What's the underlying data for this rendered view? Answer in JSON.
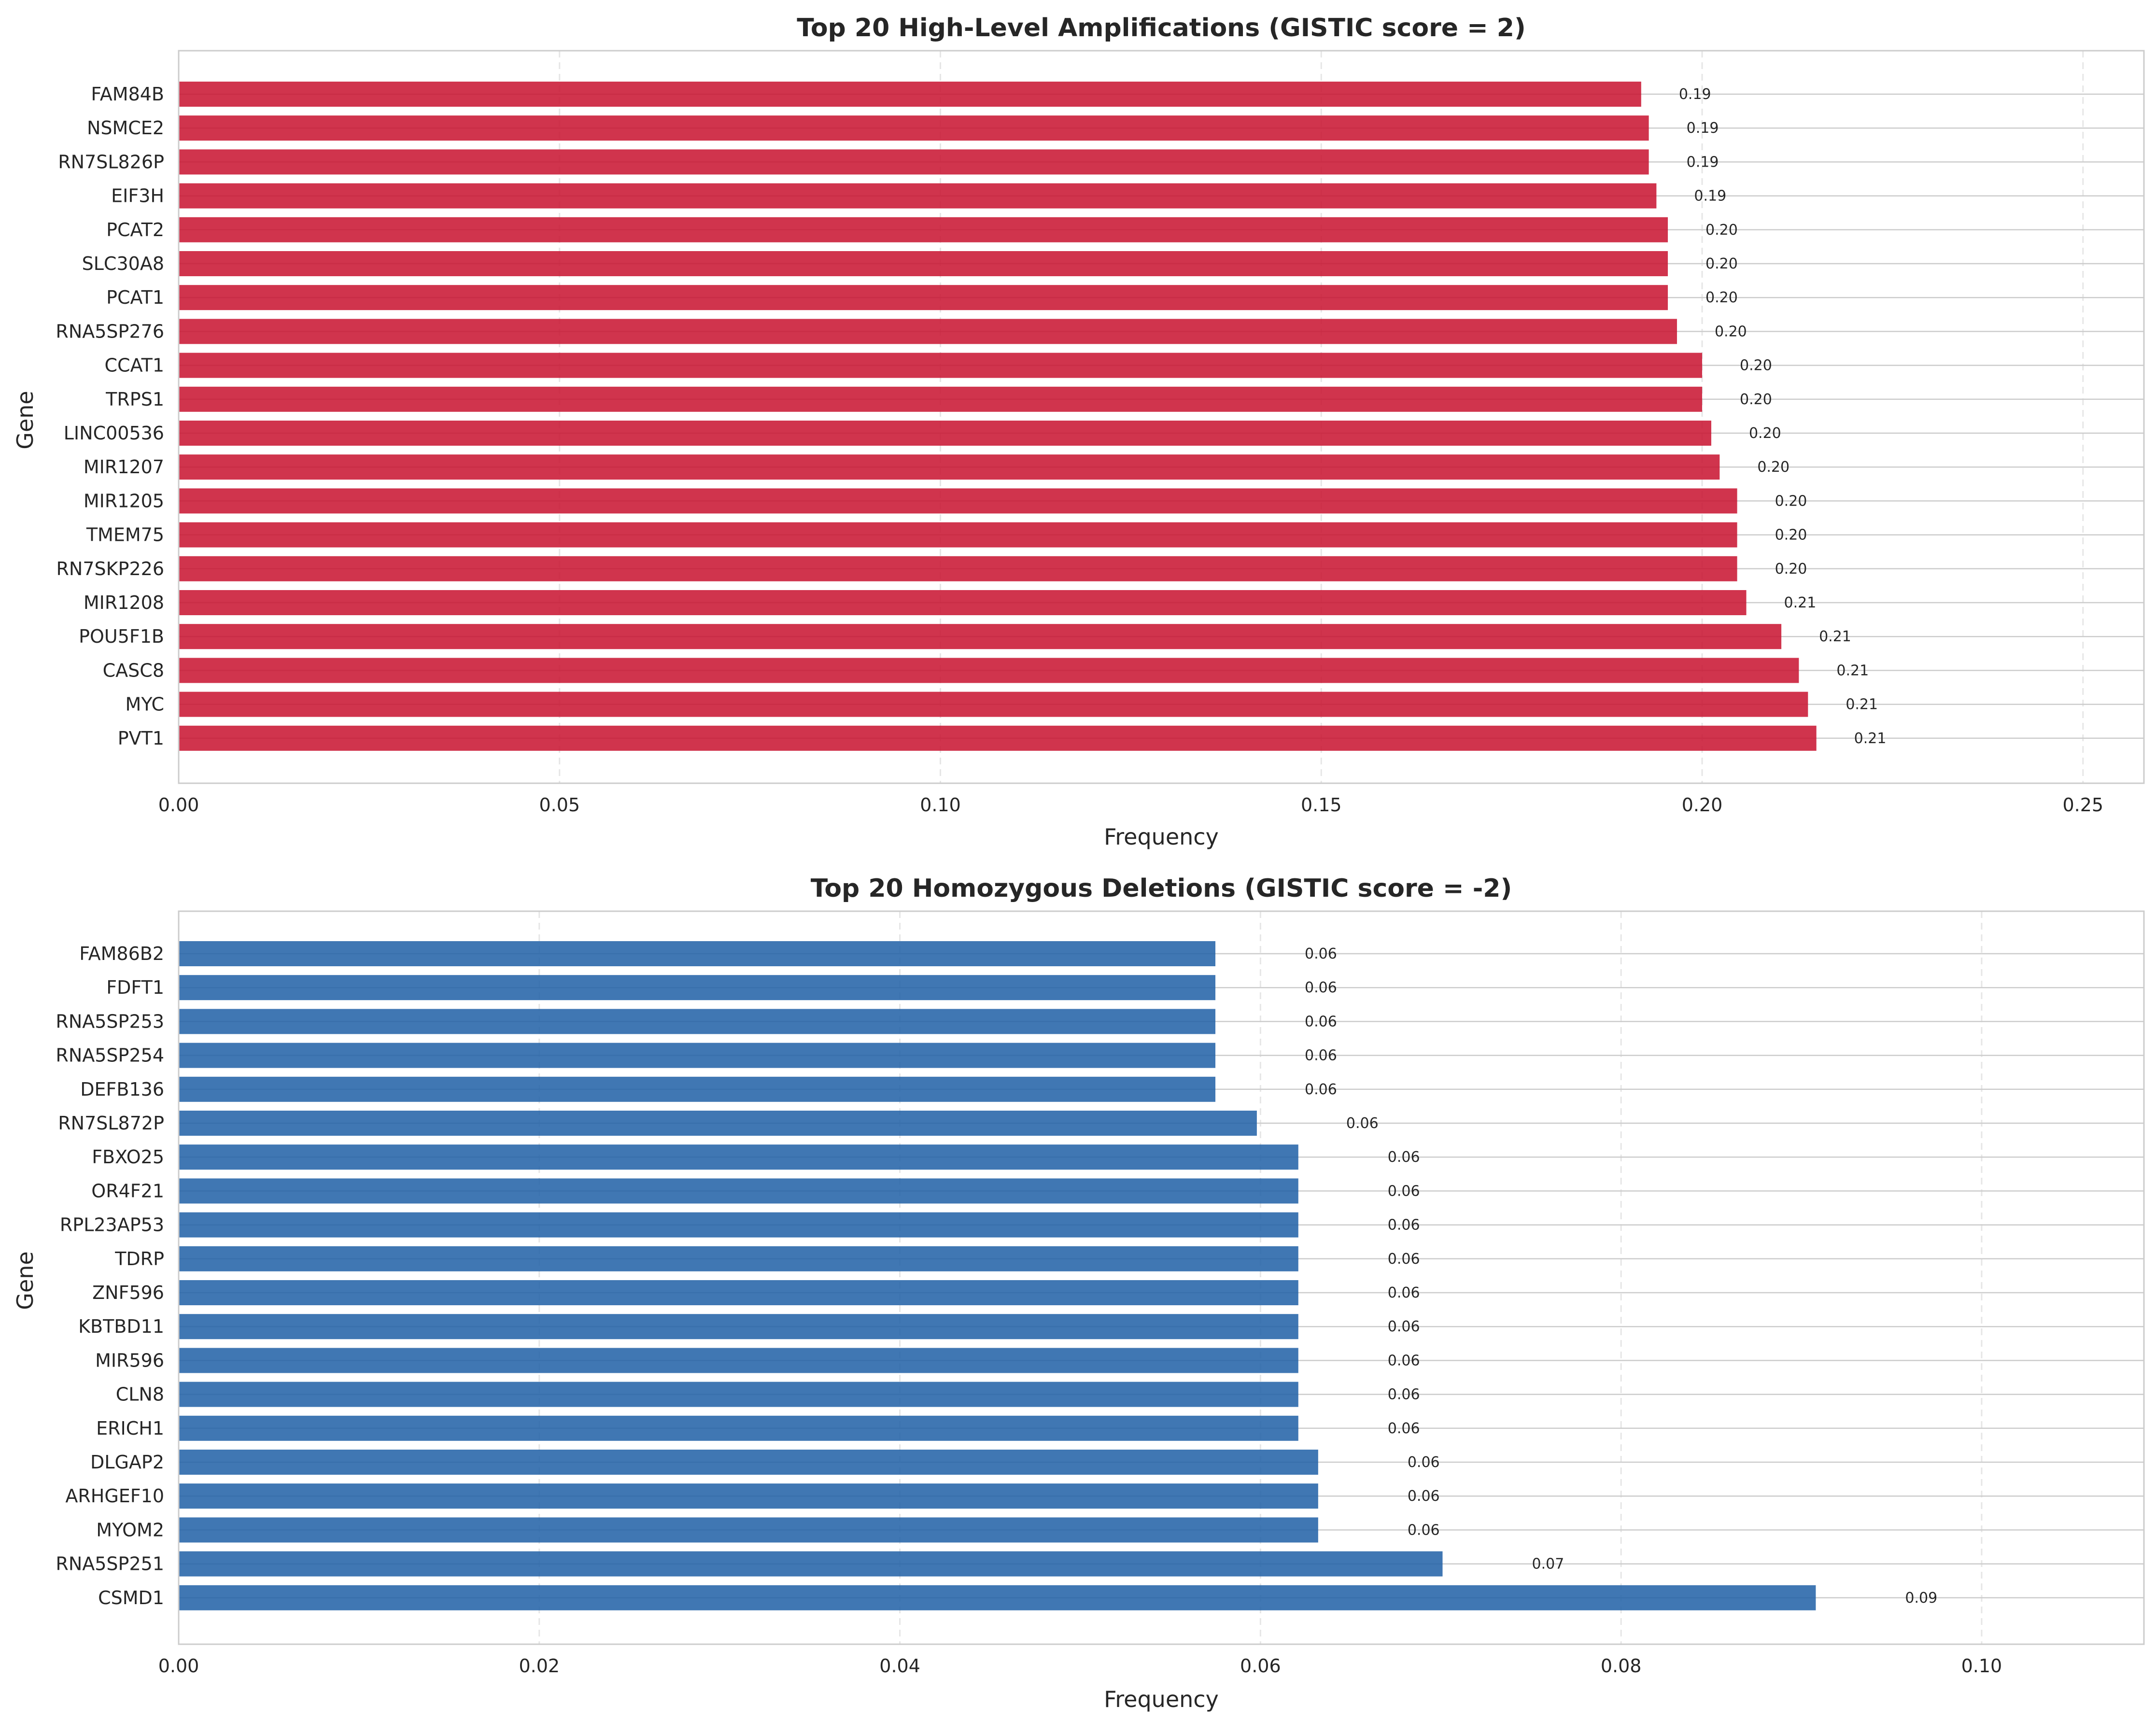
{
  "chart_data": [
    {
      "type": "bar",
      "orientation": "horizontal",
      "title": "Top 20 High-Level Amplifications (GISTIC score = 2)",
      "xlabel": "Frequency",
      "ylabel": "Gene",
      "xlim": [
        0,
        0.258
      ],
      "xticks": [
        0.0,
        0.05,
        0.1,
        0.15,
        0.2,
        0.25
      ],
      "xtick_labels": [
        "0.00",
        "0.05",
        "0.10",
        "0.15",
        "0.20",
        "0.25"
      ],
      "grid": true,
      "color": "#c8102e",
      "categories": [
        "FAM84B",
        "NSMCE2",
        "RN7SL826P",
        "EIF3H",
        "PCAT2",
        "SLC30A8",
        "PCAT1",
        "RNA5SP276",
        "CCAT1",
        "TRPS1",
        "LINC00536",
        "MIR1207",
        "MIR1205",
        "TMEM75",
        "RN7SKP226",
        "MIR1208",
        "POU5F1B",
        "CASC8",
        "MYC",
        "PVT1"
      ],
      "values": [
        0.192,
        0.193,
        0.193,
        0.194,
        0.1955,
        0.1955,
        0.1955,
        0.1967,
        0.2,
        0.2,
        0.2012,
        0.2023,
        0.2046,
        0.2046,
        0.2046,
        0.2058,
        0.2104,
        0.2127,
        0.2139,
        0.215
      ],
      "value_labels": [
        "0.19",
        "0.19",
        "0.19",
        "0.19",
        "0.20",
        "0.20",
        "0.20",
        "0.20",
        "0.20",
        "0.20",
        "0.20",
        "0.20",
        "0.20",
        "0.20",
        "0.20",
        "0.21",
        "0.21",
        "0.21",
        "0.21",
        "0.21"
      ]
    },
    {
      "type": "bar",
      "orientation": "horizontal",
      "title": "Top 20 Homozygous Deletions (GISTIC score = -2)",
      "xlabel": "Frequency",
      "ylabel": "Gene",
      "xlim": [
        0,
        0.109
      ],
      "xticks": [
        0.0,
        0.02,
        0.04,
        0.06,
        0.08,
        0.1
      ],
      "xtick_labels": [
        "0.00",
        "0.02",
        "0.04",
        "0.06",
        "0.08",
        "0.10"
      ],
      "grid": true,
      "color": "#1f5fa6",
      "categories": [
        "FAM86B2",
        "FDFT1",
        "RNA5SP253",
        "RNA5SP254",
        "DEFB136",
        "RN7SL872P",
        "FBXO25",
        "OR4F21",
        "RPL23AP53",
        "TDRP",
        "ZNF596",
        "KBTBD11",
        "MIR596",
        "CLN8",
        "ERICH1",
        "DLGAP2",
        "ARHGEF10",
        "MYOM2",
        "RNA5SP251",
        "CSMD1"
      ],
      "values": [
        0.0575,
        0.0575,
        0.0575,
        0.0575,
        0.0575,
        0.0598,
        0.0621,
        0.0621,
        0.0621,
        0.0621,
        0.0621,
        0.0621,
        0.0621,
        0.0621,
        0.0621,
        0.0632,
        0.0632,
        0.0632,
        0.0701,
        0.0908
      ],
      "value_labels": [
        "0.06",
        "0.06",
        "0.06",
        "0.06",
        "0.06",
        "0.06",
        "0.06",
        "0.06",
        "0.06",
        "0.06",
        "0.06",
        "0.06",
        "0.06",
        "0.06",
        "0.06",
        "0.06",
        "0.06",
        "0.06",
        "0.07",
        "0.09"
      ]
    }
  ]
}
